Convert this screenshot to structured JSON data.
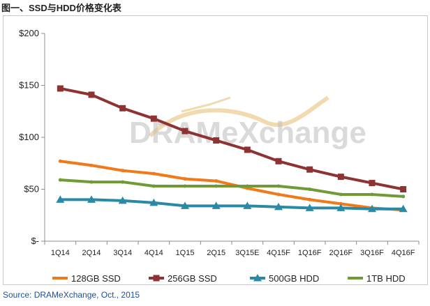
{
  "title": "图一、SSD与HDD价格变化表",
  "source": "Source: DRAMeXchange, Oct., 2015",
  "watermark": "DRAMeXchange",
  "chart_data": {
    "type": "line",
    "title": "",
    "xlabel": "",
    "ylabel": "",
    "categories": [
      "1Q14",
      "2Q14",
      "3Q14",
      "4Q14",
      "1Q15",
      "2Q15",
      "3Q15E",
      "4Q15F",
      "1Q16F",
      "2Q16F",
      "3Q16F",
      "4Q16F"
    ],
    "y_ticks": [
      "$-",
      "$50",
      "$100",
      "$150",
      "$200"
    ],
    "ylim": [
      0,
      200
    ],
    "grid": false,
    "legend_position": "bottom",
    "series": [
      {
        "name": "128GB SSD",
        "color": "#f07a1a",
        "marker": "none",
        "values": [
          77,
          73,
          68,
          65,
          60,
          58,
          51,
          45,
          40,
          36,
          32,
          30
        ]
      },
      {
        "name": "256GB SSD",
        "color": "#8e3232",
        "marker": "square",
        "values": [
          147,
          141,
          128,
          118,
          106,
          97,
          88,
          77,
          69,
          62,
          56,
          50
        ]
      },
      {
        "name": "500GB HDD",
        "color": "#2a8aa6",
        "marker": "triangle",
        "values": [
          40,
          40,
          39,
          37,
          34,
          34,
          34,
          33,
          32,
          32,
          31,
          31
        ]
      },
      {
        "name": "1TB HDD",
        "color": "#6f9a35",
        "marker": "none",
        "values": [
          59,
          57,
          57,
          53,
          53,
          53,
          53,
          53,
          50,
          45,
          45,
          43
        ]
      }
    ]
  }
}
